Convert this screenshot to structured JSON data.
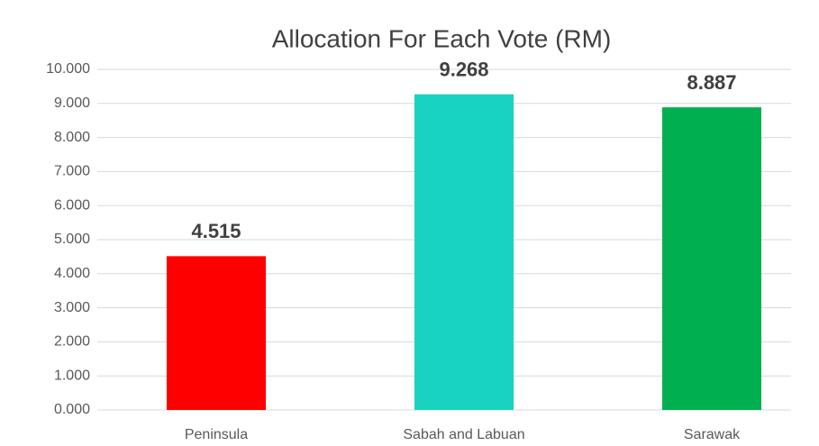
{
  "chart_data": {
    "type": "bar",
    "title": "Allocation For Each Vote (RM)",
    "categories": [
      "Peninsula",
      "Sabah and Labuan",
      "Sarawak"
    ],
    "values": [
      4.515,
      9.268,
      8.887
    ],
    "colors": [
      "#ff0000",
      "#17d3bf",
      "#00b050"
    ],
    "ylim": [
      0,
      10
    ],
    "yticks": [
      {
        "value": 0,
        "label": "0.000"
      },
      {
        "value": 1,
        "label": "1.000"
      },
      {
        "value": 2,
        "label": "2.000"
      },
      {
        "value": 3,
        "label": "3.000"
      },
      {
        "value": 4,
        "label": "4.000"
      },
      {
        "value": 5,
        "label": "5.000"
      },
      {
        "value": 6,
        "label": "6.000"
      },
      {
        "value": 7,
        "label": "7.000"
      },
      {
        "value": 8,
        "label": "8.000"
      },
      {
        "value": 9,
        "label": "9.000"
      },
      {
        "value": 10,
        "label": "10.000"
      }
    ],
    "grid": true
  }
}
